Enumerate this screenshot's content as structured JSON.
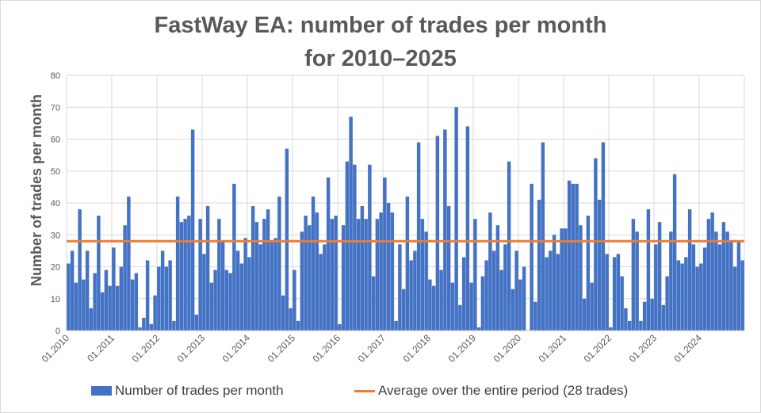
{
  "colors": {
    "bar": "#4472C4",
    "avg_line": "#ED7D31",
    "grid": "#d9d9d9",
    "text": "#595959"
  },
  "chart_data": {
    "type": "bar",
    "title_line1": "FastWay EA: number of trades per month",
    "title_line2": "for 2010–2025",
    "ylabel": "Number of trades per month",
    "ylim": [
      0,
      80
    ],
    "yticks": [
      0,
      10,
      20,
      30,
      40,
      50,
      60,
      70,
      80
    ],
    "xtick_labels": [
      "01.2010",
      "01.2011",
      "01.2012",
      "01.2013",
      "01.2014",
      "01.2015",
      "01.2016",
      "01.2017",
      "01.2018",
      "01.2019",
      "01.2020",
      "01.2021",
      "01.2022",
      "01.2023",
      "01.2024"
    ],
    "grid": true,
    "legend_position": "bottom",
    "series": [
      {
        "name": "Number of trades per month",
        "values": [
          21,
          25,
          15,
          38,
          16,
          25,
          7,
          18,
          36,
          12,
          19,
          14,
          26,
          14,
          20,
          33,
          42,
          16,
          18,
          1,
          4,
          22,
          2,
          11,
          20,
          25,
          20,
          22,
          3,
          42,
          34,
          35,
          36,
          63,
          5,
          35,
          24,
          39,
          15,
          19,
          35,
          28,
          19,
          18,
          46,
          25,
          21,
          29,
          23,
          39,
          34,
          27,
          35,
          38,
          28,
          29,
          42,
          11,
          57,
          7,
          19,
          3,
          31,
          36,
          33,
          42,
          37,
          24,
          27,
          48,
          35,
          36,
          2,
          33,
          53,
          67,
          52,
          35,
          39,
          35,
          52,
          17,
          35,
          37,
          48,
          40,
          37,
          3,
          27,
          13,
          42,
          22,
          25,
          59,
          35,
          31,
          16,
          14,
          61,
          19,
          63,
          39,
          15,
          70,
          8,
          23,
          64,
          15,
          35,
          1,
          17,
          22,
          37,
          25,
          33,
          19,
          27,
          53,
          13,
          25,
          16,
          20,
          0,
          46,
          9,
          41,
          59,
          23,
          25,
          30,
          24,
          32,
          32,
          47,
          46,
          46,
          33,
          10,
          36,
          15,
          54,
          41,
          59,
          24,
          1,
          23,
          24,
          17,
          7,
          3,
          35,
          31,
          3,
          9,
          38,
          10,
          27,
          34,
          8,
          17,
          31,
          49,
          22,
          21,
          23,
          38,
          27,
          20,
          21,
          26,
          35,
          37,
          31,
          27,
          34,
          31,
          28,
          20,
          28,
          22
        ]
      },
      {
        "name": "Average over the entire period (28 trades)",
        "value": 28
      }
    ]
  }
}
